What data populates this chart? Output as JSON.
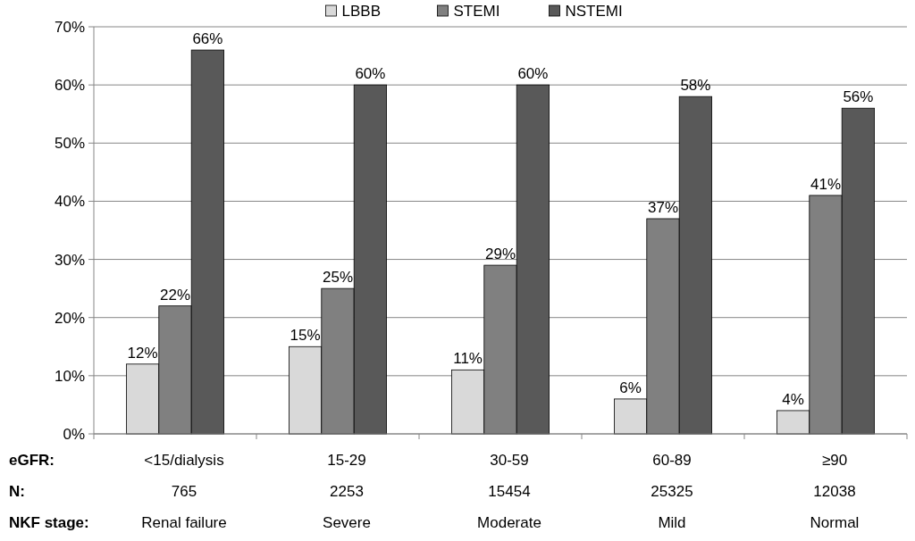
{
  "chart_data": {
    "type": "bar",
    "categories": [
      "<15/dialysis\n765\nRenal failure",
      "15-29\n2253\nSevere",
      "30-59\n15454\nModerate",
      "60-89\n25325\nMild",
      "≥90\n12038\nNormal"
    ],
    "series": [
      {
        "name": "LBBB",
        "color": "#d9d9d9",
        "values": [
          12,
          15,
          11,
          6,
          4
        ],
        "value_labels": [
          "12%",
          "15%",
          "11%",
          "6%",
          "4%"
        ]
      },
      {
        "name": "STEMI",
        "color": "#808080",
        "values": [
          22,
          25,
          29,
          37,
          41
        ],
        "value_labels": [
          "22%",
          "25%",
          "29%",
          "37%",
          "41%"
        ]
      },
      {
        "name": "NSTEMI",
        "color": "#595959",
        "values": [
          66,
          60,
          60,
          58,
          56
        ],
        "value_labels": [
          "66%",
          "60%",
          "60%",
          "58%",
          "56%"
        ]
      }
    ],
    "ylim": [
      0,
      70
    ],
    "yticks": [
      {
        "value": 0,
        "label": "0%"
      },
      {
        "value": 10,
        "label": "10%"
      },
      {
        "value": 20,
        "label": "20%"
      },
      {
        "value": 30,
        "label": "30%"
      },
      {
        "value": 40,
        "label": "40%"
      },
      {
        "value": 50,
        "label": "50%"
      },
      {
        "value": 60,
        "label": "60%"
      },
      {
        "value": 70,
        "label": "70%"
      }
    ],
    "grid": "y",
    "legend": "top",
    "annotations": [
      "eGFR:",
      "N:",
      "NKF stage:"
    ]
  }
}
